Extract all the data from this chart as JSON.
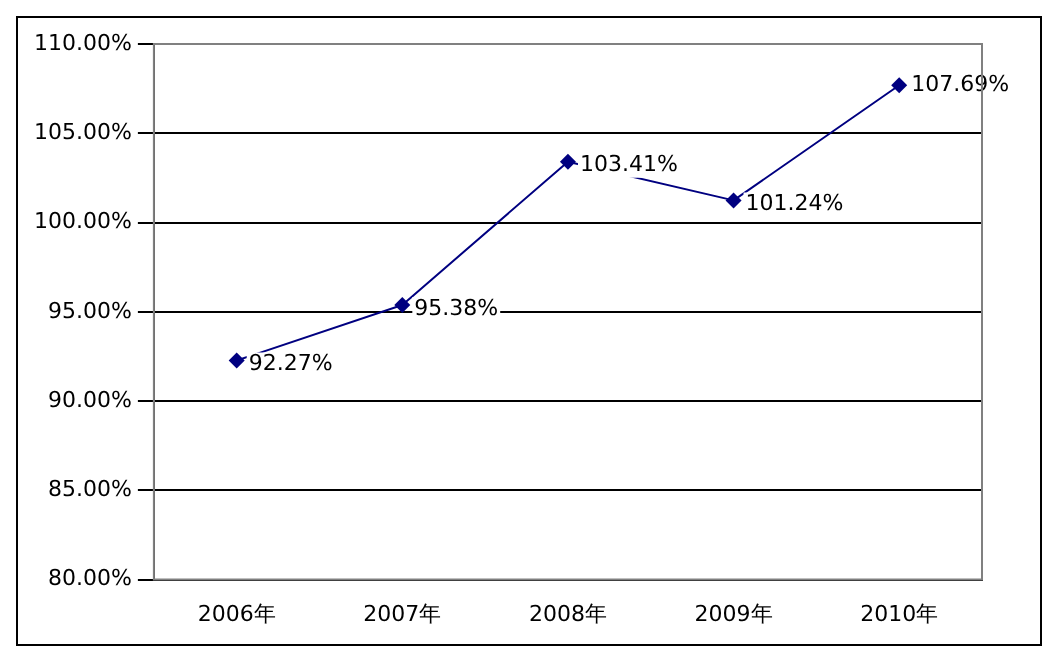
{
  "chart_data": {
    "type": "line",
    "categories": [
      "2006年",
      "2007年",
      "2008年",
      "2009年",
      "2010年"
    ],
    "series": [
      {
        "color": "#000080",
        "values": [
          92.27,
          95.38,
          103.41,
          101.24,
          107.69
        ],
        "value_labels": [
          "92.27%",
          "95.38%",
          "103.41%",
          "101.24%",
          "107.69%"
        ]
      }
    ],
    "ylim": [
      80,
      110
    ],
    "yticks": [
      {
        "value": 80,
        "label": "80.00%"
      },
      {
        "value": 85,
        "label": "85.00%"
      },
      {
        "value": 90,
        "label": "90.00%"
      },
      {
        "value": 95,
        "label": "95.00%"
      },
      {
        "value": 100,
        "label": "100.00%"
      },
      {
        "value": 105,
        "label": "105.00%"
      },
      {
        "value": 110,
        "label": "110.00%"
      }
    ],
    "grid": "y",
    "legend": false,
    "marker": "diamond",
    "line_style": "solid"
  }
}
